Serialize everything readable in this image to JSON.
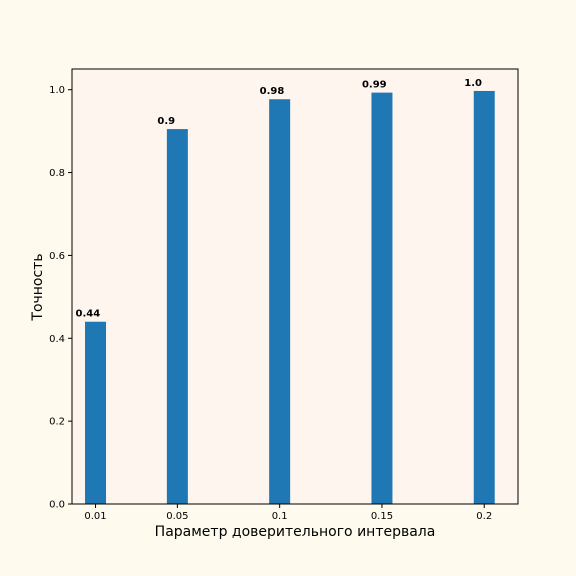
{
  "chart_data": {
    "type": "bar",
    "categories": [
      "0.01",
      "0.05",
      "0.1",
      "0.15",
      "0.2"
    ],
    "x": [
      0.01,
      0.05,
      0.1,
      0.15,
      0.2
    ],
    "values": [
      0.44,
      0.905,
      0.977,
      0.993,
      0.997
    ],
    "data_labels": [
      "0.44",
      "0.9",
      "0.98",
      "0.99",
      "1.0"
    ],
    "title": "",
    "xlabel": "Параметр доверительного интервала",
    "ylabel": "Точность",
    "ylim": [
      0,
      1.05
    ],
    "yticks": [
      "0.0",
      "0.2",
      "0.4",
      "0.6",
      "0.8",
      "1.0"
    ],
    "bar_color": "#1f77b4",
    "plot_background": "#fef5ef",
    "figure_background": "#fefaee",
    "grid": false,
    "legend": "none"
  }
}
